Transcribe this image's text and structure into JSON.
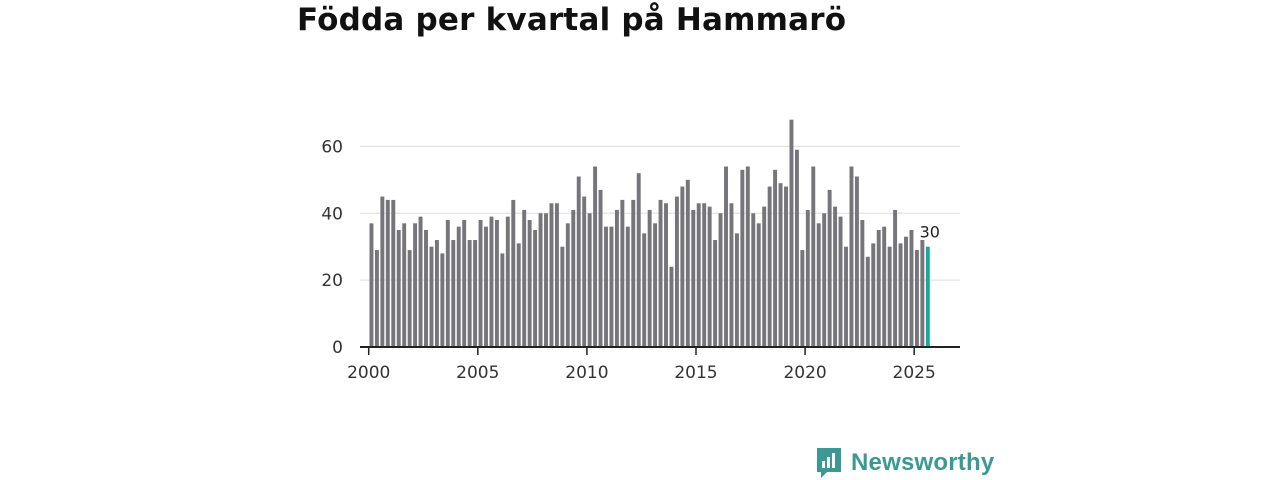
{
  "title": "Födda per kvartal på Hammarö",
  "brand": {
    "name": "Newsworthy",
    "color": "#3a9a93"
  },
  "colors": {
    "bar": "#76757b",
    "highlight": "#1aa89a",
    "grid": "#dddddd",
    "axis": "#222222"
  },
  "chart_data": {
    "type": "bar",
    "title": "Födda per kvartal på Hammarö",
    "xlabel": "",
    "ylabel": "",
    "x_start": "2000-Q1",
    "x_ticks": [
      2000,
      2005,
      2010,
      2015,
      2020,
      2025
    ],
    "xlim": [
      1999.6,
      2027.1
    ],
    "y_ticks": [
      0,
      20,
      40,
      60
    ],
    "ylim": [
      0,
      70
    ],
    "grid": true,
    "legend": "none",
    "highlight_last": true,
    "last_label": "30",
    "values": [
      37,
      29,
      45,
      44,
      44,
      35,
      37,
      29,
      37,
      39,
      35,
      30,
      32,
      28,
      38,
      32,
      36,
      38,
      32,
      32,
      38,
      36,
      39,
      38,
      28,
      39,
      44,
      31,
      41,
      38,
      35,
      40,
      40,
      43,
      43,
      30,
      37,
      41,
      51,
      45,
      40,
      54,
      47,
      36,
      36,
      41,
      44,
      36,
      44,
      52,
      34,
      41,
      37,
      44,
      43,
      24,
      45,
      48,
      50,
      41,
      43,
      43,
      42,
      32,
      40,
      54,
      43,
      34,
      53,
      54,
      40,
      37,
      42,
      48,
      53,
      49,
      48,
      68,
      59,
      29,
      41,
      54,
      37,
      40,
      47,
      42,
      39,
      30,
      54,
      51,
      38,
      27,
      31,
      35,
      36,
      30,
      41,
      31,
      33,
      35,
      29,
      32,
      30
    ]
  }
}
